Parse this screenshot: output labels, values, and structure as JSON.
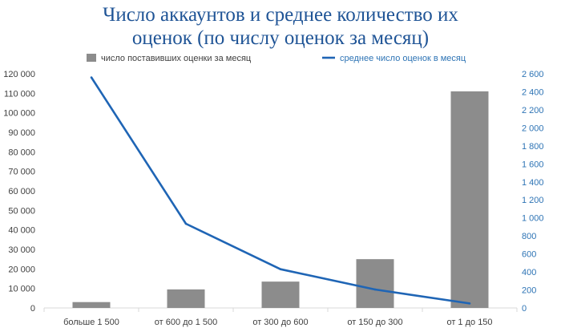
{
  "chart_data": {
    "type": "bar+line",
    "title_lines": [
      "Число аккаунтов и среднее количество их",
      "оценок (по числу оценок за месяц)"
    ],
    "categories": [
      "больше 1 500",
      "от 600 до 1 500",
      "от 300 до 600",
      "от 150 до 300",
      "от 1 до 150"
    ],
    "series": [
      {
        "name": "число поставивших оценки за месяц",
        "kind": "bar",
        "axis": "left",
        "color": "#8c8c8c",
        "values": [
          3000,
          9500,
          13500,
          25000,
          111000
        ]
      },
      {
        "name": "среднее число оценок в месяц",
        "kind": "line",
        "axis": "right",
        "color": "#1f65b5",
        "values": [
          2560,
          935,
          430,
          205,
          50
        ]
      }
    ],
    "y_left": {
      "ylim": [
        0,
        120000
      ],
      "ticks": [
        "0",
        "10 000",
        "20 000",
        "30 000",
        "40 000",
        "50 000",
        "60 000",
        "70 000",
        "80 000",
        "90 000",
        "100 000",
        "110 000",
        "120 000"
      ]
    },
    "y_right": {
      "ylim": [
        0,
        2600
      ],
      "ticks": [
        "0",
        "200",
        "400",
        "600",
        "800",
        "1 000",
        "1 200",
        "1 400",
        "1 600",
        "1 800",
        "2 000",
        "2 200",
        "2 400",
        "2 600"
      ],
      "color": "#2e74b5"
    },
    "legend_position": "top",
    "grid": false
  }
}
